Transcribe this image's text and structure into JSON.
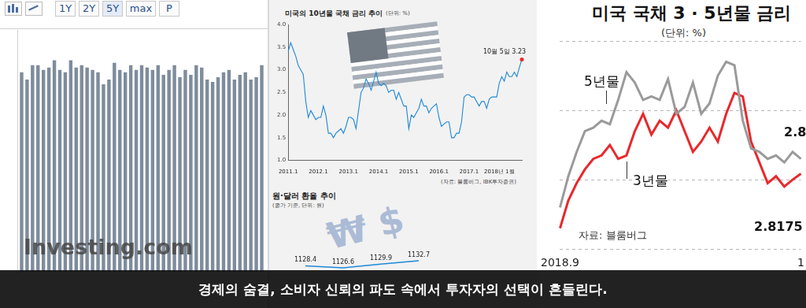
{
  "chart_data": [
    {
      "type": "bar",
      "buttons": [
        "1Y",
        "2Y",
        "5Y",
        "max",
        "P"
      ],
      "watermark": "Investing.com",
      "categories": [
        null,
        null,
        null,
        null,
        null,
        null,
        null,
        null,
        null,
        null,
        null,
        null,
        null,
        null,
        null,
        null,
        null,
        null,
        null,
        null,
        null,
        null,
        null,
        null,
        null,
        null,
        null,
        null,
        null,
        null,
        null,
        null,
        null,
        null,
        null,
        null,
        null,
        null,
        null,
        null,
        null,
        null,
        null,
        null,
        null
      ],
      "values": [
        83,
        80,
        86,
        86,
        84,
        85,
        88,
        84,
        83,
        88,
        85,
        86,
        85,
        84,
        83,
        78,
        80,
        87,
        84,
        83,
        86,
        84,
        86,
        85,
        84,
        86,
        82,
        84,
        86,
        81,
        84,
        82,
        86,
        85,
        80,
        79,
        81,
        83,
        84,
        80,
        82,
        83,
        80,
        81,
        86
      ],
      "color": "#7e8c9c",
      "ylim": [
        0,
        100
      ],
      "grid": false,
      "tick_labels": false
    },
    {
      "type": "line",
      "title": "미국의 10년물 국채 금리 추이",
      "subtitle": "(단위: %)",
      "source": "(자료: 블룸버그, IBK투자증권)",
      "annotations": [
        {
          "text": "10월 5일 3.23"
        }
      ],
      "categories": [
        "2011.1",
        null,
        null,
        null,
        null,
        null,
        null,
        null,
        null,
        null,
        null,
        null,
        "2012.1",
        null,
        null,
        null,
        null,
        null,
        null,
        null,
        null,
        null,
        null,
        null,
        "2013.1",
        null,
        null,
        null,
        null,
        null,
        null,
        null,
        null,
        null,
        null,
        null,
        "2014.1",
        null,
        null,
        null,
        null,
        null,
        null,
        null,
        null,
        null,
        null,
        null,
        "2015.1",
        null,
        null,
        null,
        null,
        null,
        null,
        null,
        null,
        null,
        null,
        null,
        "2016.1",
        null,
        null,
        null,
        null,
        null,
        null,
        null,
        null,
        null,
        null,
        null,
        "2017.1",
        null,
        null,
        null,
        null,
        null,
        null,
        null,
        null,
        null,
        null,
        null,
        "2018년 1월",
        null,
        null,
        null,
        null,
        null,
        null,
        null,
        null,
        null
      ],
      "values": [
        3.4,
        3.6,
        3.45,
        3.3,
        3.1,
        3.0,
        2.9,
        2.3,
        1.95,
        2.1,
        2.0,
        1.9,
        1.95,
        1.95,
        2.2,
        2.0,
        1.6,
        1.6,
        1.5,
        1.6,
        1.65,
        1.7,
        1.6,
        1.75,
        1.95,
        1.95,
        1.9,
        1.7,
        2.1,
        2.5,
        2.6,
        2.8,
        2.7,
        2.55,
        2.75,
        2.95,
        2.7,
        2.65,
        2.7,
        2.65,
        2.5,
        2.55,
        2.55,
        2.35,
        2.5,
        2.35,
        2.2,
        2.2,
        1.7,
        2.0,
        1.95,
        2.05,
        2.15,
        2.35,
        2.2,
        2.2,
        2.05,
        2.15,
        2.2,
        2.25,
        1.95,
        1.75,
        1.8,
        1.85,
        1.85,
        1.5,
        1.5,
        1.6,
        1.6,
        1.85,
        2.4,
        2.45,
        2.45,
        2.4,
        2.4,
        2.3,
        2.2,
        2.3,
        2.3,
        2.15,
        2.35,
        2.4,
        2.4,
        2.4,
        2.7,
        2.85,
        2.75,
        2.95,
        2.85,
        2.85,
        2.95,
        2.85,
        3.05,
        3.23
      ],
      "color": "#1e88d6",
      "ylim": [
        1,
        4
      ],
      "yticks": [
        {
          "value": 1,
          "label": "1.0"
        },
        1.5,
        {
          "value": 2,
          "label": "2.0"
        },
        2.5,
        {
          "value": 3,
          "label": "3.0"
        },
        3.5,
        {
          "value": 4,
          "label": "4.0"
        }
      ],
      "grid": false
    },
    {
      "type": "line",
      "title": "원·달러 환율 추이",
      "subtitle": "(종가 기준, 단위: 원)",
      "watermark": "₩ $",
      "categories": [
        null,
        null,
        null,
        null
      ],
      "values": [
        1128.4,
        1126.6,
        1129.9,
        1132.7
      ],
      "color": "#1e88d6",
      "ylim": [
        1100,
        1140
      ],
      "data_labels": true,
      "grid": false,
      "tick_labels": false
    },
    {
      "type": "line",
      "title": "미국 국채 3 · 5년물 금리",
      "subtitle": "(단위: %)",
      "source": "자료: 블룸버그",
      "annotations": [
        {
          "text": "2.8"
        },
        {
          "text": "2.8175"
        }
      ],
      "categories": [
        "2018.9",
        null,
        null,
        null,
        null,
        null,
        null,
        null,
        null,
        null,
        null,
        null,
        null,
        null,
        null,
        null,
        null,
        null,
        null,
        null,
        null,
        null,
        null,
        null,
        null,
        null,
        null,
        null,
        null,
        "1"
      ],
      "series": [
        {
          "name": "5년물",
          "color": "#9a9a9a",
          "values": [
            2.72,
            2.81,
            2.88,
            2.94,
            2.95,
            2.97,
            2.96,
            3.03,
            3.11,
            3.08,
            3.03,
            3.04,
            3.03,
            3.09,
            2.99,
            3.01,
            3.08,
            2.99,
            3.02,
            3.1,
            3.14,
            3.13,
            2.97,
            2.89,
            2.88,
            2.86,
            2.87,
            2.85,
            2.88,
            2.86
          ]
        },
        {
          "name": "3년물",
          "color": "#e8282b",
          "values": [
            2.66,
            2.74,
            2.79,
            2.83,
            2.86,
            2.87,
            2.9,
            2.86,
            2.87,
            2.94,
            2.99,
            2.93,
            2.97,
            2.95,
            3.0,
            2.94,
            2.88,
            2.91,
            2.95,
            2.91,
            2.99,
            3.05,
            3.04,
            2.91,
            2.85,
            2.79,
            2.81,
            2.78,
            2.8,
            2.8175
          ]
        }
      ],
      "ylim": [
        2.6,
        3.2
      ],
      "yticks": [
        2.6,
        2.8,
        3,
        3.2
      ],
      "grid": true,
      "tick_labels": "x"
    }
  ],
  "caption": "경제의 숨결, 소비자 신뢰의 파도 속에서 투자자의 선택이 흔들린다."
}
